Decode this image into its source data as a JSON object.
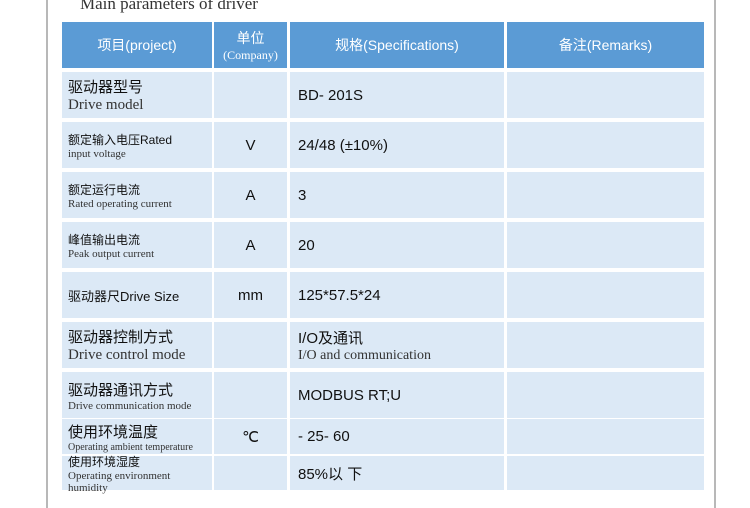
{
  "title": "Main parameters of driver",
  "header": {
    "project": "项目(project)",
    "unit_zh": "单位",
    "unit_en": "(Company)",
    "spec": "规格(Specifications)",
    "remarks": "备注(Remarks)"
  },
  "colors": {
    "header": "#5b9bd5",
    "cell": "#dce9f6"
  },
  "rows": [
    {
      "zh": "驱动器型号",
      "en": "Drive model",
      "unit": "",
      "spec": "BD- 201S",
      "spec_en": "",
      "remarks": ""
    },
    {
      "zh": "额定输入电压Rated",
      "en": "input voltage",
      "unit": "V",
      "spec": "24/48 (±10%)",
      "spec_en": "",
      "remarks": ""
    },
    {
      "zh": "额定运行电流",
      "en": "Rated operating current",
      "unit": "A",
      "spec": "3",
      "spec_en": "",
      "remarks": ""
    },
    {
      "zh": "峰值输出电流",
      "en": "Peak output current",
      "unit": "A",
      "spec": "20",
      "spec_en": "",
      "remarks": ""
    },
    {
      "zh": "驱动器尺Drive Size",
      "en": "",
      "unit": "mm",
      "spec": "125*57.5*24",
      "spec_en": "",
      "remarks": ""
    },
    {
      "zh": "驱动器控制方式",
      "en": "Drive control mode",
      "unit": "",
      "spec": "I/O及通讯",
      "spec_en": "I/O and communication",
      "remarks": ""
    },
    {
      "zh": "驱动器通讯方式",
      "en": "Drive communication mode",
      "unit": "",
      "spec": "MODBUS RT;U",
      "spec_en": "",
      "remarks": ""
    },
    {
      "zh": "使用环境温度",
      "en": "Operating ambient temperature",
      "unit": "℃",
      "spec": "- 25-  60",
      "spec_en": "",
      "remarks": ""
    },
    {
      "zh": "使用环境湿度",
      "en": "Operating environment humidity",
      "unit": "",
      "spec": "85%以 下",
      "spec_en": "",
      "remarks": ""
    }
  ]
}
